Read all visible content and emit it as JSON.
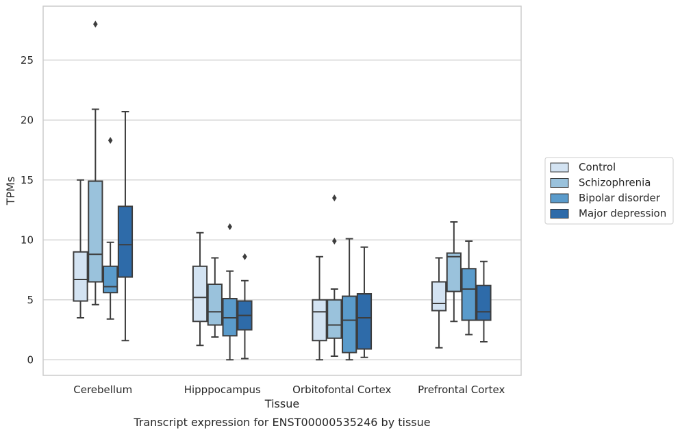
{
  "caption": "Transcript expression for ENST00000535246 by tissue",
  "chart_data": {
    "type": "box",
    "xlabel": "Tissue",
    "ylabel": "TPMs",
    "ylim": [
      -1.3,
      29.5
    ],
    "yticks": [
      0,
      5,
      10,
      15,
      20,
      25
    ],
    "grid": "horizontal",
    "legend_position": "right",
    "categories": [
      "Cerebellum",
      "Hipppocampus",
      "Orbitofontal Cortex",
      "Prefrontal Cortex"
    ],
    "series": [
      {
        "name": "Control",
        "color": "#d3e3f2",
        "boxes": [
          {
            "whislo": 3.5,
            "q1": 4.9,
            "med": 6.7,
            "q3": 9.0,
            "whishi": 15.0,
            "fliers": []
          },
          {
            "whislo": 1.2,
            "q1": 3.2,
            "med": 5.2,
            "q3": 7.8,
            "whishi": 10.6,
            "fliers": []
          },
          {
            "whislo": 0.0,
            "q1": 1.6,
            "med": 4.0,
            "q3": 5.0,
            "whishi": 8.6,
            "fliers": []
          },
          {
            "whislo": 1.0,
            "q1": 4.1,
            "med": 4.7,
            "q3": 6.5,
            "whishi": 8.5,
            "fliers": []
          }
        ]
      },
      {
        "name": "Schizophrenia",
        "color": "#9ac2dc",
        "boxes": [
          {
            "whislo": 4.6,
            "q1": 6.5,
            "med": 8.8,
            "q3": 14.9,
            "whishi": 20.9,
            "fliers": [
              28.0
            ]
          },
          {
            "whislo": 1.9,
            "q1": 2.9,
            "med": 4.0,
            "q3": 6.3,
            "whishi": 8.5,
            "fliers": []
          },
          {
            "whislo": 0.3,
            "q1": 1.8,
            "med": 2.9,
            "q3": 5.0,
            "whishi": 5.9,
            "fliers": [
              9.9,
              13.5
            ]
          },
          {
            "whislo": 3.2,
            "q1": 5.7,
            "med": 8.6,
            "q3": 8.9,
            "whishi": 11.5,
            "fliers": []
          }
        ]
      },
      {
        "name": "Bipolar disorder",
        "color": "#5a9bcb",
        "boxes": [
          {
            "whislo": 3.4,
            "q1": 5.6,
            "med": 6.1,
            "q3": 7.8,
            "whishi": 9.8,
            "fliers": [
              18.3
            ]
          },
          {
            "whislo": 0.0,
            "q1": 2.0,
            "med": 3.5,
            "q3": 5.1,
            "whishi": 7.4,
            "fliers": [
              11.1
            ]
          },
          {
            "whislo": 0.0,
            "q1": 0.6,
            "med": 3.3,
            "q3": 5.3,
            "whishi": 10.1,
            "fliers": []
          },
          {
            "whislo": 2.1,
            "q1": 3.3,
            "med": 5.9,
            "q3": 7.6,
            "whishi": 9.9,
            "fliers": []
          }
        ]
      },
      {
        "name": "Major depression",
        "color": "#2e6ba9",
        "boxes": [
          {
            "whislo": 1.6,
            "q1": 6.9,
            "med": 9.6,
            "q3": 12.8,
            "whishi": 20.7,
            "fliers": []
          },
          {
            "whislo": 0.1,
            "q1": 2.5,
            "med": 3.7,
            "q3": 4.9,
            "whishi": 6.6,
            "fliers": [
              8.6
            ]
          },
          {
            "whislo": 0.2,
            "q1": 0.9,
            "med": 3.5,
            "q3": 5.5,
            "whishi": 9.4,
            "fliers": []
          },
          {
            "whislo": 1.5,
            "q1": 3.3,
            "med": 4.0,
            "q3": 6.2,
            "whishi": 8.2,
            "fliers": []
          }
        ]
      }
    ]
  }
}
